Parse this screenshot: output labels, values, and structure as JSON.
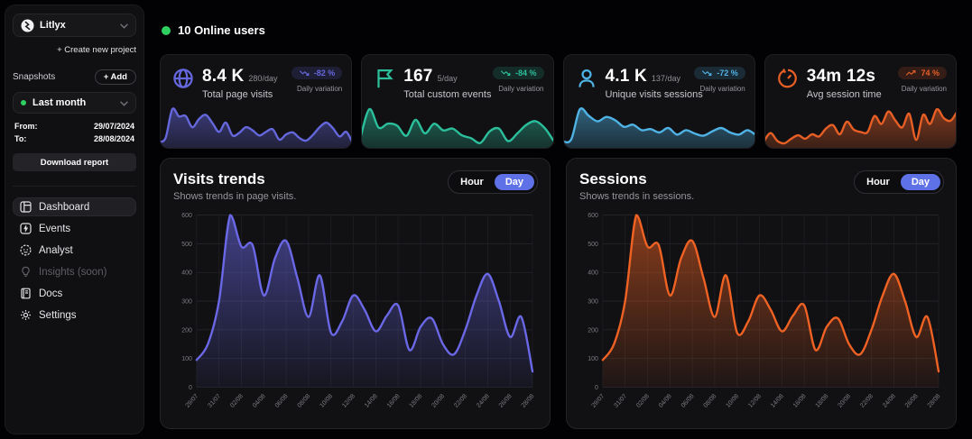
{
  "colors": {
    "accent_blue": "#5f71e6",
    "online_green": "#2fd060"
  },
  "toggle": {
    "hour": "Hour",
    "day": "Day"
  },
  "sidebar": {
    "project": {
      "name": "Litlyx"
    },
    "create_project_label": "+ Create new project",
    "snapshots_label": "Snapshots",
    "add_button": "+ Add",
    "snapshot_select": "Last month",
    "from_label": "From:",
    "from_value": "29/07/2024",
    "to_label": "To:",
    "to_value": "28/08/2024",
    "download_button": "Download report",
    "nav": [
      {
        "label": "Dashboard",
        "icon": "dashboard-icon",
        "active": true
      },
      {
        "label": "Events",
        "icon": "events-icon",
        "active": false
      },
      {
        "label": "Analyst",
        "icon": "analyst-icon",
        "active": false
      },
      {
        "label": "Insights (soon)",
        "icon": "insights-icon",
        "active": false,
        "disabled": true
      },
      {
        "label": "Docs",
        "icon": "docs-icon",
        "active": false
      },
      {
        "label": "Settings",
        "icon": "settings-icon",
        "active": false
      }
    ]
  },
  "header": {
    "online_users": "10 Online users"
  },
  "stat_cards": [
    {
      "icon": "globe-icon",
      "value": "8.4 K",
      "per_day": "280/day",
      "label": "Total page visits",
      "badge": "-82 %",
      "badge_dir": "down",
      "variation_label": "Daily variation",
      "color": "#6567dd",
      "spark": [
        12,
        19,
        75,
        61,
        62,
        40,
        56,
        64,
        48,
        31,
        49,
        24,
        29,
        40,
        34,
        24,
        31,
        36,
        16,
        26,
        30,
        19,
        14,
        25,
        40,
        49,
        38,
        22,
        31,
        7
      ]
    },
    {
      "icon": "flag-icon",
      "value": "167",
      "per_day": "5/day",
      "label": "Total custom events",
      "badge": "-84 %",
      "badge_dir": "down",
      "variation_label": "Daily variation",
      "color": "#2bbf9b",
      "spark": [
        18,
        80,
        42,
        50,
        46,
        25,
        58,
        30,
        50,
        36,
        40,
        26,
        20,
        10,
        34,
        40,
        14,
        30,
        48,
        55,
        40,
        12
      ]
    },
    {
      "icon": "user-icon",
      "value": "4.1 K",
      "per_day": "137/day",
      "label": "Unique visits sessions",
      "badge": "-72 %",
      "badge_dir": "down",
      "variation_label": "Daily variation",
      "color": "#4fb3e5",
      "spark": [
        12,
        15,
        70,
        58,
        48,
        56,
        50,
        38,
        42,
        32,
        34,
        28,
        36,
        24,
        32,
        26,
        22,
        30,
        36,
        28,
        24,
        32,
        22
      ]
    },
    {
      "icon": "timer-icon",
      "value": "34m 12s",
      "per_day": "",
      "label": "Avg session time",
      "badge": "74 %",
      "badge_dir": "up",
      "variation_label": "Daily variation",
      "color": "#e85f26",
      "spark": [
        10,
        26,
        12,
        8,
        16,
        22,
        16,
        24,
        20,
        34,
        40,
        24,
        46,
        32,
        28,
        28,
        56,
        42,
        64,
        48,
        36,
        60,
        14,
        58,
        42,
        68,
        52,
        48,
        66
      ]
    }
  ],
  "chart_data": [
    {
      "type": "area",
      "title": "Visits trends",
      "subtitle": "Shows trends in page visits.",
      "color": "#6a68e6",
      "grid": true,
      "legend": "none",
      "toggle_options": [
        "Hour",
        "Day"
      ],
      "selected_toggle": "Day",
      "ylim": [
        0,
        600
      ],
      "yticks": [
        0,
        100,
        200,
        300,
        400,
        500,
        600
      ],
      "x_tick_labels": [
        "29/07",
        "31/07",
        "02/08",
        "04/08",
        "06/08",
        "08/08",
        "10/08",
        "12/08",
        "14/08",
        "16/08",
        "18/08",
        "20/08",
        "22/08",
        "24/08",
        "26/08",
        "28/08"
      ],
      "values": [
        95,
        150,
        300,
        600,
        490,
        495,
        320,
        450,
        510,
        380,
        245,
        390,
        190,
        230,
        320,
        270,
        195,
        250,
        285,
        130,
        210,
        240,
        150,
        115,
        200,
        320,
        395,
        300,
        175,
        245,
        55
      ]
    },
    {
      "type": "area",
      "title": "Sessions",
      "subtitle": "Shows trends in sessions.",
      "color": "#ef6223",
      "grid": true,
      "legend": "none",
      "toggle_options": [
        "Hour",
        "Day"
      ],
      "selected_toggle": "Day",
      "ylim": [
        0,
        600
      ],
      "yticks": [
        0,
        100,
        200,
        300,
        400,
        500,
        600
      ],
      "x_tick_labels": [
        "29/07",
        "31/07",
        "02/08",
        "04/08",
        "06/08",
        "08/08",
        "10/08",
        "12/08",
        "14/08",
        "16/08",
        "18/08",
        "20/08",
        "22/08",
        "24/08",
        "26/08",
        "28/08"
      ],
      "values": [
        95,
        150,
        300,
        600,
        490,
        495,
        320,
        450,
        510,
        380,
        245,
        390,
        190,
        230,
        320,
        270,
        195,
        250,
        285,
        130,
        210,
        240,
        150,
        115,
        200,
        320,
        395,
        300,
        175,
        245,
        55
      ]
    }
  ]
}
